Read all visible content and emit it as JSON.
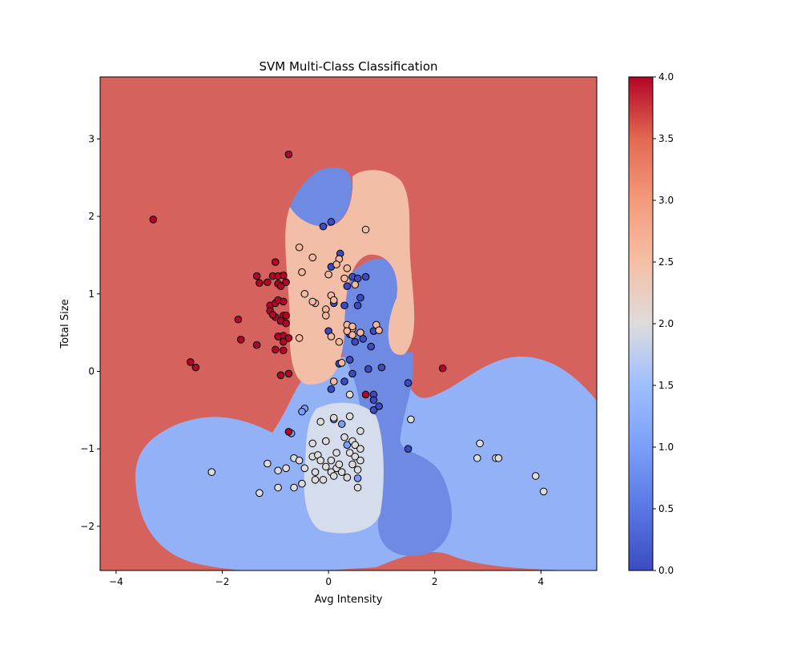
{
  "chart_data": {
    "type": "scatter",
    "title": "SVM Multi-Class Classification",
    "xlabel": "Avg Intensity",
    "ylabel": "Total Size",
    "xlim": [
      -4.3,
      5.05
    ],
    "ylim": [
      -2.57,
      3.8
    ],
    "xticks": [
      -4,
      -2,
      0,
      2,
      4
    ],
    "yticks": [
      -2,
      -1,
      0,
      1,
      2,
      3
    ],
    "colorbar": {
      "range": [
        0.0,
        4.0
      ],
      "ticks": [
        "0.0",
        "0.5",
        "1.0",
        "1.5",
        "2.0",
        "2.5",
        "3.0",
        "3.5",
        "4.0"
      ]
    },
    "colormap": "coolwarm",
    "background_region_class": 4,
    "grid": false,
    "legend": "none",
    "series": [
      {
        "class": 0,
        "color": "#3b4cc0",
        "points": [
          [
            -0.1,
            1.87
          ],
          [
            0.05,
            1.93
          ],
          [
            0.22,
            1.52
          ],
          [
            0.05,
            1.35
          ],
          [
            0.45,
            1.22
          ],
          [
            0.55,
            1.2
          ],
          [
            0.7,
            1.22
          ],
          [
            0.35,
            1.1
          ],
          [
            0.1,
            0.88
          ],
          [
            0.3,
            0.85
          ],
          [
            0.55,
            0.85
          ],
          [
            0.6,
            0.95
          ],
          [
            0.0,
            0.52
          ],
          [
            0.6,
            0.5
          ],
          [
            0.4,
            0.48
          ],
          [
            0.5,
            0.38
          ],
          [
            0.65,
            0.42
          ],
          [
            0.8,
            0.32
          ],
          [
            0.85,
            0.52
          ],
          [
            0.4,
            0.15
          ],
          [
            0.2,
            0.1
          ],
          [
            0.45,
            -0.03
          ],
          [
            0.75,
            0.03
          ],
          [
            1.0,
            0.05
          ],
          [
            0.3,
            -0.13
          ],
          [
            0.05,
            -0.23
          ],
          [
            0.85,
            -0.3
          ],
          [
            0.85,
            -0.37
          ],
          [
            0.85,
            -0.5
          ],
          [
            0.95,
            -0.45
          ],
          [
            1.5,
            -0.15
          ],
          [
            1.5,
            -1.0
          ]
        ]
      },
      {
        "class": 1,
        "color": "#7b9ff9",
        "points": [
          [
            -0.7,
            -0.8
          ],
          [
            -0.45,
            -0.48
          ],
          [
            -0.5,
            -0.52
          ],
          [
            0.25,
            -0.68
          ],
          [
            0.55,
            -1.38
          ],
          [
            0.1,
            -0.62
          ],
          [
            0.35,
            -0.95
          ],
          [
            -0.05,
            -0.9
          ]
        ]
      },
      {
        "class": 2,
        "color": "#dddcdc",
        "points": [
          [
            -2.2,
            -1.3
          ],
          [
            -1.3,
            -1.57
          ],
          [
            -1.15,
            -1.19
          ],
          [
            -0.95,
            -1.28
          ],
          [
            -0.95,
            -1.5
          ],
          [
            -0.8,
            -1.25
          ],
          [
            -0.65,
            -1.12
          ],
          [
            -0.65,
            -1.5
          ],
          [
            -0.55,
            -1.15
          ],
          [
            -0.5,
            -1.45
          ],
          [
            -0.45,
            -1.25
          ],
          [
            -0.3,
            -1.1
          ],
          [
            -0.3,
            -0.93
          ],
          [
            -0.25,
            -1.3
          ],
          [
            -0.25,
            -1.4
          ],
          [
            -0.2,
            -1.08
          ],
          [
            -0.15,
            -0.65
          ],
          [
            -0.15,
            -1.15
          ],
          [
            -0.1,
            -1.4
          ],
          [
            -0.05,
            -0.9
          ],
          [
            -0.05,
            -1.23
          ],
          [
            0.05,
            -1.15
          ],
          [
            0.05,
            -1.3
          ],
          [
            0.1,
            -0.6
          ],
          [
            0.1,
            -1.35
          ],
          [
            0.15,
            -1.05
          ],
          [
            0.15,
            -1.25
          ],
          [
            0.2,
            -1.2
          ],
          [
            0.25,
            -1.3
          ],
          [
            0.3,
            -0.85
          ],
          [
            0.35,
            -1.37
          ],
          [
            0.4,
            -1.05
          ],
          [
            0.4,
            -0.58
          ],
          [
            0.45,
            -1.2
          ],
          [
            0.45,
            -0.9
          ],
          [
            0.5,
            -1.1
          ],
          [
            0.5,
            -0.95
          ],
          [
            0.55,
            -1.27
          ],
          [
            0.6,
            -1.0
          ],
          [
            0.6,
            -0.77
          ],
          [
            0.6,
            -1.15
          ],
          [
            0.55,
            -1.5
          ],
          [
            0.4,
            -0.3
          ],
          [
            1.55,
            -0.62
          ],
          [
            2.8,
            -1.12
          ],
          [
            2.85,
            -0.93
          ],
          [
            3.15,
            -1.12
          ],
          [
            3.2,
            -1.12
          ],
          [
            3.9,
            -1.35
          ],
          [
            4.05,
            -1.55
          ]
        ]
      },
      {
        "class": 3,
        "color": "#f7b89c",
        "points": [
          [
            0.7,
            1.83
          ],
          [
            -0.55,
            1.6
          ],
          [
            -0.3,
            1.47
          ],
          [
            -0.5,
            1.28
          ],
          [
            0.0,
            1.25
          ],
          [
            0.2,
            1.45
          ],
          [
            0.15,
            1.38
          ],
          [
            0.35,
            1.33
          ],
          [
            0.5,
            1.12
          ],
          [
            -0.45,
            1.0
          ],
          [
            0.05,
            0.98
          ],
          [
            -0.25,
            0.88
          ],
          [
            -0.3,
            0.9
          ],
          [
            0.1,
            0.92
          ],
          [
            -0.05,
            0.8
          ],
          [
            -0.05,
            0.72
          ],
          [
            0.35,
            0.6
          ],
          [
            0.45,
            0.55
          ],
          [
            0.45,
            0.58
          ],
          [
            0.35,
            0.52
          ],
          [
            0.45,
            0.47
          ],
          [
            0.6,
            0.5
          ],
          [
            0.9,
            0.6
          ],
          [
            0.95,
            0.53
          ],
          [
            0.05,
            0.45
          ],
          [
            0.2,
            0.38
          ],
          [
            -0.55,
            0.43
          ],
          [
            0.25,
            0.11
          ],
          [
            0.1,
            -0.13
          ],
          [
            0.3,
            1.2
          ]
        ]
      },
      {
        "class": 4,
        "color": "#b40426",
        "points": [
          [
            -0.75,
            2.8
          ],
          [
            -3.3,
            1.96
          ],
          [
            -1.35,
            1.23
          ],
          [
            -1.3,
            1.14
          ],
          [
            -1.15,
            1.15
          ],
          [
            -1.05,
            1.23
          ],
          [
            -0.95,
            1.23
          ],
          [
            -0.85,
            1.24
          ],
          [
            -0.95,
            1.13
          ],
          [
            -0.9,
            1.1
          ],
          [
            -0.8,
            1.15
          ],
          [
            -1.0,
            1.41
          ],
          [
            -1.1,
            0.85
          ],
          [
            -1.1,
            0.78
          ],
          [
            -1.0,
            0.7
          ],
          [
            -1.05,
            0.73
          ],
          [
            -1.0,
            0.88
          ],
          [
            -0.95,
            0.92
          ],
          [
            -0.85,
            0.72
          ],
          [
            -0.8,
            0.72
          ],
          [
            -0.85,
            0.9
          ],
          [
            -0.9,
            0.65
          ],
          [
            -0.8,
            0.62
          ],
          [
            -1.7,
            0.67
          ],
          [
            -1.65,
            0.41
          ],
          [
            -1.35,
            0.34
          ],
          [
            -0.95,
            0.45
          ],
          [
            -0.85,
            0.46
          ],
          [
            -0.85,
            0.38
          ],
          [
            -0.75,
            0.43
          ],
          [
            -1.0,
            0.28
          ],
          [
            -0.85,
            0.27
          ],
          [
            -2.6,
            0.12
          ],
          [
            -2.5,
            0.05
          ],
          [
            -0.9,
            -0.05
          ],
          [
            -0.75,
            -0.03
          ],
          [
            -0.75,
            -0.78
          ],
          [
            0.7,
            -0.3
          ],
          [
            2.15,
            0.04
          ]
        ]
      }
    ]
  }
}
